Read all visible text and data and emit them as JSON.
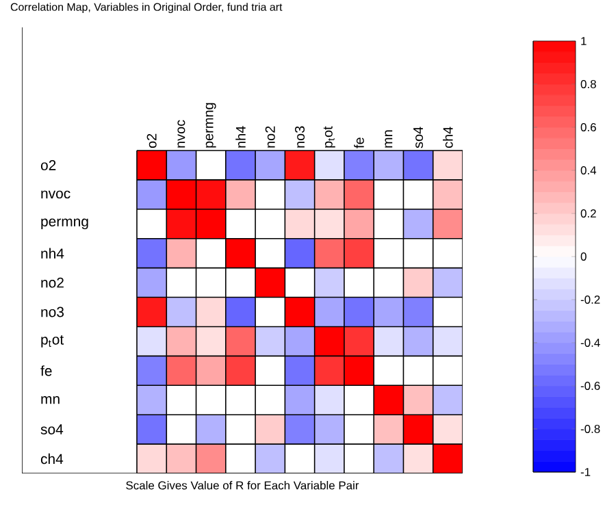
{
  "chart_data": {
    "type": "heatmap",
    "title": "Correlation Map, Variables in Original Order, fund tria art",
    "xlabel": "Scale Gives Value of R for Each Variable Pair",
    "categories": [
      "o2",
      "nvoc",
      "permng",
      "nh4",
      "no2",
      "no3",
      "p$_{t}$ot",
      "fe",
      "mn",
      "so4",
      "ch4"
    ],
    "y_categories": [
      "o2",
      "nvoc",
      "permng",
      "nh4",
      "no2",
      "no3",
      "p$_{t}$ot",
      "fe",
      "mn",
      "so4",
      "ch4"
    ],
    "cells": [
      [
        1,
        -0.4,
        0,
        -0.55,
        -0.35,
        0.9,
        -0.12,
        -0.5,
        -0.3,
        -0.55,
        0.15
      ],
      [
        -0.4,
        1,
        0.95,
        0.3,
        0,
        -0.25,
        0.3,
        0.6,
        0,
        0,
        0.25
      ],
      [
        0,
        0.95,
        1,
        0,
        0,
        0.15,
        0.12,
        0.35,
        0,
        -0.3,
        0.45
      ],
      [
        -0.55,
        0.3,
        0,
        1,
        0,
        -0.6,
        0.6,
        0.75,
        0,
        0,
        0
      ],
      [
        -0.35,
        0,
        0,
        0,
        1,
        0,
        -0.2,
        0,
        0,
        0.2,
        -0.25
      ],
      [
        0.9,
        -0.25,
        0.15,
        -0.6,
        0,
        1,
        -0.35,
        -0.55,
        -0.35,
        -0.5,
        0
      ],
      [
        -0.12,
        0.3,
        0.12,
        0.6,
        -0.2,
        -0.35,
        1,
        0.8,
        -0.12,
        -0.3,
        -0.12
      ],
      [
        -0.5,
        0.6,
        0.35,
        0.75,
        0,
        -0.55,
        0.8,
        1,
        0,
        0,
        0
      ],
      [
        -0.3,
        0,
        0,
        0,
        0,
        -0.35,
        -0.12,
        0,
        1,
        0.25,
        -0.25
      ],
      [
        -0.55,
        0,
        -0.3,
        0,
        0.2,
        -0.5,
        -0.3,
        0,
        0.25,
        1,
        0.12
      ],
      [
        0.15,
        0.25,
        0.45,
        0,
        -0.25,
        0,
        -0.12,
        0,
        -0.25,
        0.12,
        1
      ]
    ],
    "clim": [
      -1,
      1
    ],
    "cticks": [
      -1,
      -0.8,
      -0.6,
      -0.4,
      -0.2,
      0,
      0.2,
      0.4,
      0.6,
      0.8,
      1
    ]
  }
}
